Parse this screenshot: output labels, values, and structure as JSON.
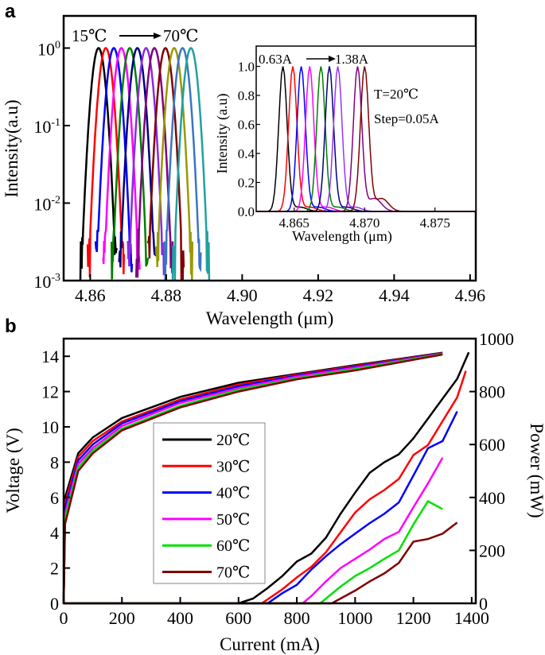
{
  "chart_data": [
    {
      "panel": "a",
      "type": "line",
      "xlabel": "Wavelength (μm)",
      "ylabel": "Intensity(a.u)",
      "yscale": "log",
      "xlim": [
        4.853,
        4.9615
      ],
      "ylim": [
        0.001,
        2.6
      ],
      "xticks": [
        4.86,
        4.88,
        4.9,
        4.92,
        4.94,
        4.96
      ],
      "xtick_labels": [
        "4.86",
        "4.88",
        "4.90",
        "4.92",
        "4.94",
        "4.96"
      ],
      "yticks": [
        1,
        0.1,
        0.01,
        0.001
      ],
      "ytick_labels": [
        {
          "base": "10",
          "exp": "0"
        },
        {
          "base": "10",
          "exp": "-1"
        },
        {
          "base": "10",
          "exp": "-2"
        },
        {
          "base": "10",
          "exp": "-3"
        }
      ],
      "annotation": {
        "from": "15℃",
        "to": "70℃"
      },
      "grid": false,
      "series": [
        {
          "peak_um": 4.8622,
          "color": "#000000"
        },
        {
          "peak_um": 4.8641,
          "color": "#ff0000"
        },
        {
          "peak_um": 4.8662,
          "color": "#0000ff"
        },
        {
          "peak_um": 4.8682,
          "color": "#ff00ff"
        },
        {
          "peak_um": 4.8704,
          "color": "#008000"
        },
        {
          "peak_um": 4.8724,
          "color": "#000080"
        },
        {
          "peak_um": 4.8747,
          "color": "#8a2be2"
        },
        {
          "peak_um": 4.8769,
          "color": "#800080"
        },
        {
          "peak_um": 4.8798,
          "color": "#800000"
        },
        {
          "peak_um": 4.8821,
          "color": "#999900"
        },
        {
          "peak_um": 4.8843,
          "color": "#3a75c4"
        },
        {
          "peak_um": 4.8865,
          "color": "#20a0a0"
        }
      ],
      "inset": {
        "type": "line",
        "xlabel": "Wavelength (μm)",
        "ylabel": "Intensity (a.u)",
        "xlim": [
          4.8623,
          4.8779
        ],
        "ylim": [
          0,
          1.14
        ],
        "xticks": [
          4.865,
          4.87,
          4.875
        ],
        "xtick_labels": [
          "4.865",
          "4.870",
          "4.875"
        ],
        "yticks": [
          0,
          0.2,
          0.4,
          0.6,
          0.8,
          1.0
        ],
        "ytick_labels": [
          "0.0",
          "0.2",
          "0.4",
          "0.6",
          "0.8",
          "1.0"
        ],
        "annotation": {
          "from": "0.63A",
          "to": "1.38A"
        },
        "condition": "T=20℃",
        "step": "Step=0.05A",
        "series": [
          {
            "peak_um": 4.8642,
            "color": "#000000"
          },
          {
            "peak_um": 4.8649,
            "color": "#ff0000"
          },
          {
            "peak_um": 4.8655,
            "color": "#0000ff"
          },
          {
            "peak_um": 4.8661,
            "color": "#ff00ff"
          },
          {
            "peak_um": 4.8669,
            "color": "#008000"
          },
          {
            "peak_um": 4.8675,
            "color": "#000080"
          },
          {
            "peak_um": 4.8681,
            "color": "#9933ff"
          },
          {
            "peak_um": 4.8695,
            "color": "#800080"
          },
          {
            "peak_um": 4.87,
            "color": "#800000"
          }
        ]
      }
    },
    {
      "panel": "b",
      "type": "line",
      "xlabel": "Current (mA)",
      "ylabel": "Voltage (V)",
      "y2label": "Power (mW)",
      "xlim": [
        0,
        1414
      ],
      "ylim": [
        0,
        15
      ],
      "y2lim": [
        0,
        1000
      ],
      "xticks": [
        0,
        200,
        400,
        600,
        800,
        1000,
        1200,
        1400
      ],
      "yticks": [
        0,
        2,
        4,
        6,
        8,
        10,
        12,
        14
      ],
      "y2ticks": [
        0,
        200,
        400,
        600,
        800,
        1000
      ],
      "legend_position": "center-left",
      "grid": false,
      "series": [
        {
          "name": "20℃",
          "color": "#000000",
          "voltage": [
            [
              0,
              0
            ],
            [
              5,
              6.0
            ],
            [
              50,
              8.5
            ],
            [
              100,
              9.4
            ],
            [
              200,
              10.5
            ],
            [
              400,
              11.7
            ],
            [
              600,
              12.5
            ],
            [
              800,
              13.0
            ],
            [
              1000,
              13.5
            ],
            [
              1300,
              14.2
            ]
          ],
          "power": [
            [
              0,
              0
            ],
            [
              600,
              0
            ],
            [
              650,
              18
            ],
            [
              700,
              58
            ],
            [
              750,
              103
            ],
            [
              800,
              158
            ],
            [
              850,
              188
            ],
            [
              900,
              248
            ],
            [
              950,
              338
            ],
            [
              1000,
              418
            ],
            [
              1050,
              493
            ],
            [
              1100,
              533
            ],
            [
              1150,
              563
            ],
            [
              1200,
              623
            ],
            [
              1250,
              698
            ],
            [
              1300,
              773
            ],
            [
              1350,
              848
            ],
            [
              1390,
              948
            ]
          ]
        },
        {
          "name": "30℃",
          "color": "#ff0000",
          "voltage": [
            [
              0,
              0
            ],
            [
              5,
              5.7
            ],
            [
              50,
              8.3
            ],
            [
              100,
              9.2
            ],
            [
              200,
              10.3
            ],
            [
              400,
              11.55
            ],
            [
              600,
              12.4
            ],
            [
              800,
              12.95
            ],
            [
              1000,
              13.45
            ],
            [
              1300,
              14.18
            ]
          ],
          "power": [
            [
              0,
              0
            ],
            [
              680,
              0
            ],
            [
              750,
              53
            ],
            [
              800,
              98
            ],
            [
              850,
              138
            ],
            [
              900,
              193
            ],
            [
              950,
              268
            ],
            [
              1000,
              343
            ],
            [
              1050,
              393
            ],
            [
              1100,
              428
            ],
            [
              1150,
              470
            ],
            [
              1200,
              560
            ],
            [
              1250,
              598
            ],
            [
              1300,
              688
            ],
            [
              1350,
              778
            ],
            [
              1380,
              878
            ]
          ]
        },
        {
          "name": "40℃",
          "color": "#0000ff",
          "voltage": [
            [
              0,
              0
            ],
            [
              5,
              5.4
            ],
            [
              50,
              8.1
            ],
            [
              100,
              9.0
            ],
            [
              200,
              10.2
            ],
            [
              400,
              11.45
            ],
            [
              600,
              12.3
            ],
            [
              800,
              12.9
            ],
            [
              1000,
              13.4
            ],
            [
              1300,
              14.16
            ]
          ],
          "power": [
            [
              0,
              0
            ],
            [
              700,
              0
            ],
            [
              750,
              38
            ],
            [
              800,
              70
            ],
            [
              850,
              128
            ],
            [
              900,
              178
            ],
            [
              950,
              223
            ],
            [
              1000,
              263
            ],
            [
              1050,
              303
            ],
            [
              1100,
              338
            ],
            [
              1150,
              381
            ],
            [
              1200,
              483
            ],
            [
              1250,
              586
            ],
            [
              1300,
              613
            ],
            [
              1350,
              725
            ]
          ]
        },
        {
          "name": "50℃",
          "color": "#ff00ff",
          "voltage": [
            [
              0,
              0
            ],
            [
              5,
              5.1
            ],
            [
              50,
              7.9
            ],
            [
              100,
              8.8
            ],
            [
              200,
              10.05
            ],
            [
              400,
              11.35
            ],
            [
              600,
              12.2
            ],
            [
              800,
              12.85
            ],
            [
              1000,
              13.35
            ],
            [
              1300,
              14.14
            ]
          ],
          "power": [
            [
              0,
              0
            ],
            [
              820,
              0
            ],
            [
              850,
              28
            ],
            [
              900,
              83
            ],
            [
              950,
              133
            ],
            [
              1000,
              168
            ],
            [
              1050,
              203
            ],
            [
              1100,
              243
            ],
            [
              1150,
              270
            ],
            [
              1200,
              363
            ],
            [
              1250,
              453
            ],
            [
              1300,
              550
            ]
          ]
        },
        {
          "name": "60℃",
          "color": "#00e000",
          "voltage": [
            [
              0,
              0
            ],
            [
              5,
              4.8
            ],
            [
              50,
              7.7
            ],
            [
              100,
              8.65
            ],
            [
              200,
              9.9
            ],
            [
              400,
              11.2
            ],
            [
              600,
              12.1
            ],
            [
              800,
              12.75
            ],
            [
              1000,
              13.28
            ],
            [
              1300,
              14.12
            ]
          ],
          "power": [
            [
              0,
              0
            ],
            [
              880,
              0
            ],
            [
              950,
              63
            ],
            [
              1000,
              103
            ],
            [
              1050,
              133
            ],
            [
              1100,
              168
            ],
            [
              1150,
              200
            ],
            [
              1200,
              298
            ],
            [
              1250,
              386
            ],
            [
              1300,
              356
            ]
          ]
        },
        {
          "name": "70℃",
          "color": "#800000",
          "voltage": [
            [
              0,
              0
            ],
            [
              5,
              4.5
            ],
            [
              50,
              7.5
            ],
            [
              100,
              8.5
            ],
            [
              200,
              9.8
            ],
            [
              400,
              11.1
            ],
            [
              600,
              12.0
            ],
            [
              800,
              12.7
            ],
            [
              1000,
              13.2
            ],
            [
              1300,
              14.1
            ]
          ],
          "power": [
            [
              0,
              0
            ],
            [
              920,
              0
            ],
            [
              1000,
              48
            ],
            [
              1050,
              83
            ],
            [
              1100,
              113
            ],
            [
              1150,
              153
            ],
            [
              1200,
              233
            ],
            [
              1250,
              243
            ],
            [
              1300,
              263
            ],
            [
              1350,
              305
            ]
          ]
        }
      ]
    }
  ]
}
